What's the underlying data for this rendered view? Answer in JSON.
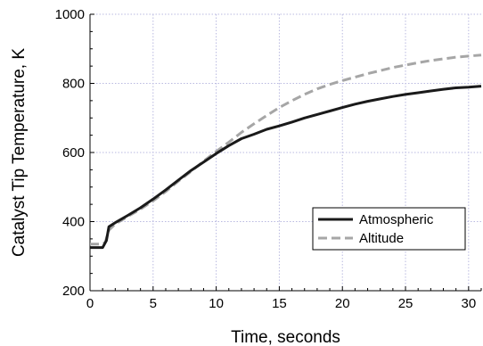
{
  "chart_data": {
    "type": "line",
    "title": "",
    "xlabel": "Time, seconds",
    "ylabel": "Catalyst Tip Temperature, K",
    "xlim": [
      0,
      31
    ],
    "ylim": [
      200,
      1000
    ],
    "xticks": [
      0,
      5,
      10,
      15,
      20,
      25,
      30
    ],
    "yticks": [
      200,
      400,
      600,
      800,
      1000
    ],
    "grid": true,
    "legend_position": "lower-right",
    "series": [
      {
        "name": "Atmospheric",
        "color": "#1a1a1a",
        "style": "solid",
        "points": [
          [
            0,
            325
          ],
          [
            1.0,
            325
          ],
          [
            1.3,
            345
          ],
          [
            1.5,
            385
          ],
          [
            2,
            397
          ],
          [
            3,
            418
          ],
          [
            4,
            440
          ],
          [
            5,
            465
          ],
          [
            6,
            492
          ],
          [
            7,
            520
          ],
          [
            8,
            548
          ],
          [
            9,
            572
          ],
          [
            10,
            597
          ],
          [
            11,
            620
          ],
          [
            12,
            640
          ],
          [
            13,
            653
          ],
          [
            14,
            667
          ],
          [
            15,
            677
          ],
          [
            16,
            688
          ],
          [
            17,
            700
          ],
          [
            18,
            710
          ],
          [
            19,
            720
          ],
          [
            20,
            730
          ],
          [
            21,
            740
          ],
          [
            22,
            748
          ],
          [
            23,
            755
          ],
          [
            24,
            762
          ],
          [
            25,
            768
          ],
          [
            26,
            773
          ],
          [
            27,
            778
          ],
          [
            28,
            783
          ],
          [
            29,
            787
          ],
          [
            30,
            789
          ],
          [
            31,
            792
          ]
        ]
      },
      {
        "name": "Altitude",
        "color": "#a6a6a6",
        "style": "dashed",
        "points": [
          [
            0,
            335
          ],
          [
            1.0,
            335
          ],
          [
            1.2,
            340
          ],
          [
            1.5,
            375
          ],
          [
            2,
            393
          ],
          [
            3,
            415
          ],
          [
            4,
            436
          ],
          [
            5,
            460
          ],
          [
            6,
            487
          ],
          [
            7,
            517
          ],
          [
            8,
            545
          ],
          [
            9,
            575
          ],
          [
            10,
            603
          ],
          [
            11,
            630
          ],
          [
            12,
            658
          ],
          [
            13,
            683
          ],
          [
            14,
            707
          ],
          [
            15,
            730
          ],
          [
            16,
            750
          ],
          [
            17,
            768
          ],
          [
            18,
            784
          ],
          [
            19,
            797
          ],
          [
            20,
            808
          ],
          [
            21,
            818
          ],
          [
            22,
            828
          ],
          [
            23,
            837
          ],
          [
            24,
            846
          ],
          [
            25,
            853
          ],
          [
            26,
            860
          ],
          [
            27,
            866
          ],
          [
            28,
            871
          ],
          [
            29,
            876
          ],
          [
            30,
            879
          ],
          [
            31,
            882
          ]
        ]
      }
    ]
  }
}
